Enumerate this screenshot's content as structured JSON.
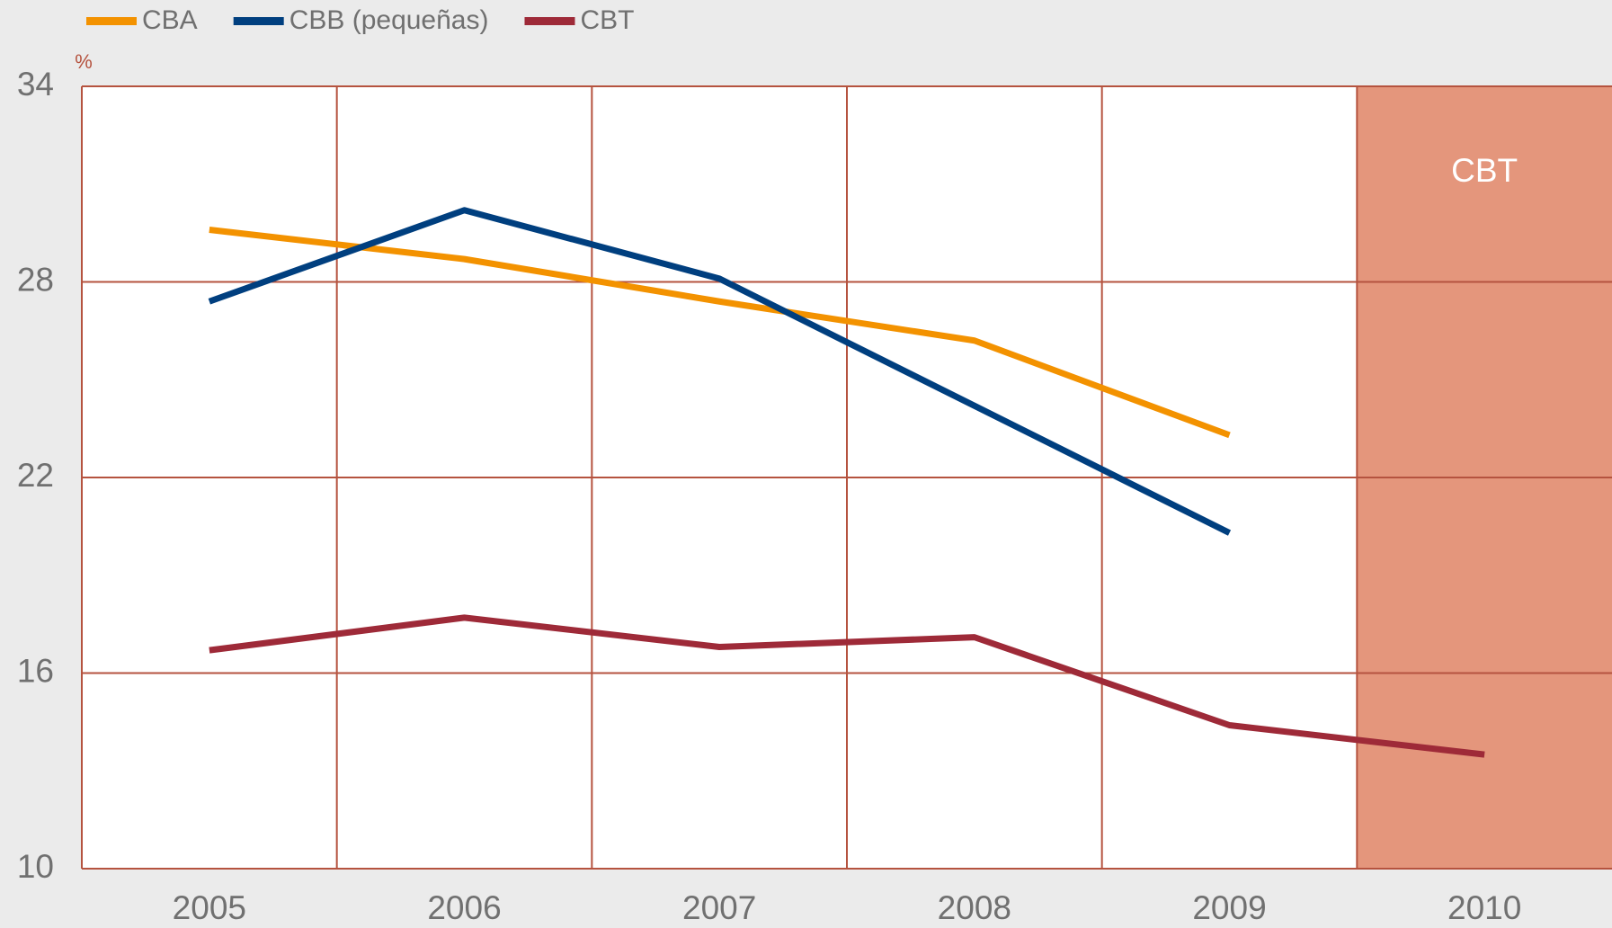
{
  "chart_data": {
    "type": "line",
    "y_unit": "%",
    "categories": [
      "2005",
      "2006",
      "2007",
      "2008",
      "2009",
      "2010"
    ],
    "series": [
      {
        "name": "CBA",
        "color": "#f39200",
        "values": [
          29.6,
          28.7,
          27.4,
          26.2,
          23.3,
          null
        ]
      },
      {
        "name": "CBB (pequeñas)",
        "color": "#003f7f",
        "values": [
          27.4,
          30.2,
          28.1,
          24.2,
          20.3,
          null
        ]
      },
      {
        "name": "CBT",
        "color": "#9e2a38",
        "values": [
          16.7,
          17.7,
          16.8,
          17.1,
          14.4,
          13.5
        ]
      }
    ],
    "ylim": [
      10,
      34
    ],
    "yticks": [
      10,
      16,
      22,
      28,
      34
    ],
    "grid": true,
    "shaded": {
      "category": "2010",
      "label": "CBT",
      "color": "#e4967c"
    },
    "grid_color": "#b5533f"
  }
}
